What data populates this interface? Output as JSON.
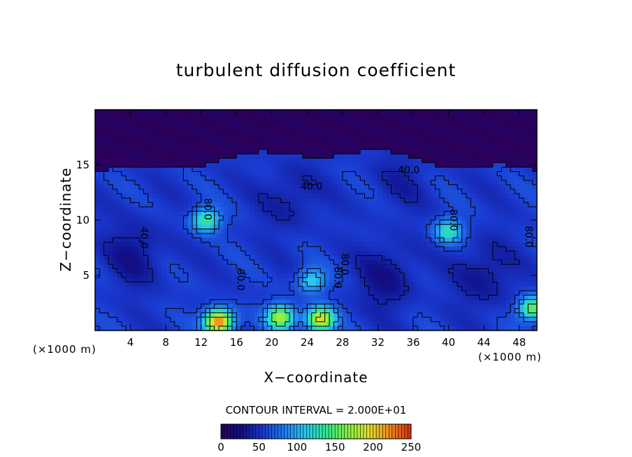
{
  "chart_data": {
    "type": "heatmap",
    "title": "turbulent diffusion coefficient",
    "xlabel": "X−coordinate",
    "ylabel": "Z−coordinate",
    "x_unit_left": "(×1000 m)",
    "x_unit_right": "(×1000 m)",
    "xlim": [
      0,
      50
    ],
    "ylim": [
      0,
      20
    ],
    "x_ticks": [
      4,
      8,
      12,
      16,
      20,
      24,
      28,
      32,
      36,
      40,
      44,
      48
    ],
    "y_ticks": [
      5,
      10,
      15
    ],
    "contour_interval_text": "CONTOUR INTERVAL = 2.000E+01",
    "contour_labels": [
      {
        "text": "40.0",
        "x": 35.5,
        "y": 14.5,
        "rot": 0
      },
      {
        "text": "40.0",
        "x": 24.5,
        "y": 13.0,
        "rot": 0
      },
      {
        "text": "40.0",
        "x": 5.5,
        "y": 8.4,
        "rot": 90
      },
      {
        "text": "80.0",
        "x": 28.2,
        "y": 6.0,
        "rot": 90
      },
      {
        "text": "80.0",
        "x": 27.4,
        "y": 4.8,
        "rot": 90
      },
      {
        "text": "80.0",
        "x": 49.0,
        "y": 8.5,
        "rot": 90
      },
      {
        "text": "80.0",
        "x": 12.7,
        "y": 11.0,
        "rot": 90
      },
      {
        "text": "80.0",
        "x": 16.4,
        "y": 4.6,
        "rot": 90
      },
      {
        "text": "80.0",
        "x": 40.5,
        "y": 10.0,
        "rot": 90
      }
    ],
    "colorbar": {
      "min": 0,
      "max": 250,
      "tick_labels": [
        "0",
        "50",
        "100",
        "150",
        "200",
        "250"
      ],
      "tick_values": [
        0,
        50,
        100,
        150,
        200,
        250
      ]
    },
    "colormap": [
      "#2a005a",
      "#10108a",
      "#1a3ad0",
      "#1f7bf0",
      "#28c8f0",
      "#30e890",
      "#88f040",
      "#e0e030",
      "#f08a20",
      "#d03010"
    ],
    "field": {
      "background_value": 55,
      "top_layer_value": 0,
      "top_layer_base_y": 15.2,
      "vortices": [
        {
          "x": 4.5,
          "y": 7.0,
          "value": 30
        },
        {
          "x": 33.0,
          "y": 4.8,
          "value": 28
        },
        {
          "x": 44.0,
          "y": 5.0,
          "value": 30
        },
        {
          "x": 22.0,
          "y": 12.0,
          "value": 36
        },
        {
          "x": 34.5,
          "y": 13.5,
          "value": 42
        }
      ],
      "hot_spots": [
        {
          "x": 24.5,
          "y": 4.5,
          "value": 120
        },
        {
          "x": 21.0,
          "y": 1.2,
          "value": 180
        },
        {
          "x": 14.0,
          "y": 0.8,
          "value": 235
        },
        {
          "x": 25.5,
          "y": 1.0,
          "value": 200
        },
        {
          "x": 12.5,
          "y": 10.0,
          "value": 140
        },
        {
          "x": 40.0,
          "y": 9.0,
          "value": 130
        },
        {
          "x": 49.5,
          "y": 2.0,
          "value": 160
        }
      ]
    }
  }
}
